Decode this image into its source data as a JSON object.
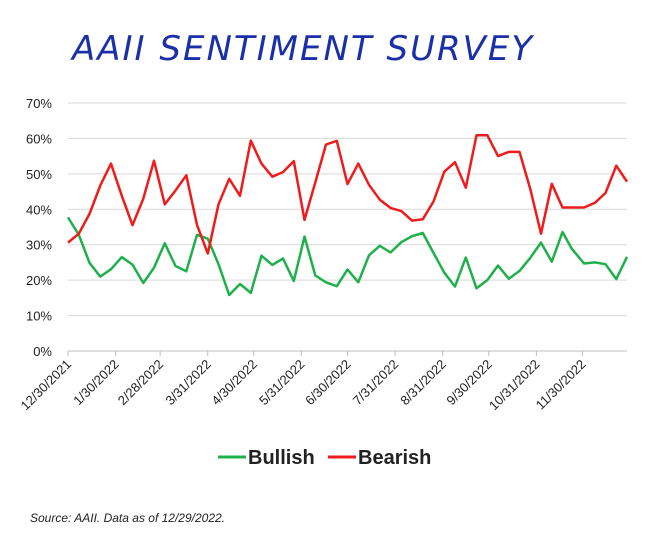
{
  "chart_data": {
    "type": "line",
    "title": "AAII SENTIMENT SURVEY",
    "source": "Source: AAII. Data as of 12/29/2022.",
    "x": [
      "12/30/2021",
      "1/6/2022",
      "1/13/2022",
      "1/20/2022",
      "1/27/2022",
      "2/3/2022",
      "2/10/2022",
      "2/17/2022",
      "2/24/2022",
      "3/3/2022",
      "3/10/2022",
      "3/17/2022",
      "3/24/2022",
      "3/31/2022",
      "4/7/2022",
      "4/14/2022",
      "4/21/2022",
      "4/28/2022",
      "5/5/2022",
      "5/12/2022",
      "5/19/2022",
      "5/26/2022",
      "6/2/2022",
      "6/9/2022",
      "6/16/2022",
      "6/23/2022",
      "6/30/2022",
      "7/7/2022",
      "7/14/2022",
      "7/21/2022",
      "7/28/2022",
      "8/4/2022",
      "8/11/2022",
      "8/18/2022",
      "8/25/2022",
      "9/1/2022",
      "9/8/2022",
      "9/15/2022",
      "9/22/2022",
      "9/29/2022",
      "10/6/2022",
      "10/13/2022",
      "10/20/2022",
      "10/27/2022",
      "11/3/2022",
      "11/10/2022",
      "11/17/2022",
      "11/23/2022",
      "12/1/2022",
      "12/8/2022",
      "12/15/2022",
      "12/22/2022",
      "12/29/2022"
    ],
    "xlim": [
      "12/30/2021",
      "12/29/2022"
    ],
    "xticks": [
      "12/30/2021",
      "1/30/2022",
      "2/28/2022",
      "3/31/2022",
      "4/30/2022",
      "5/31/2022",
      "6/30/2022",
      "7/31/2022",
      "8/31/2022",
      "9/30/2022",
      "10/31/2022",
      "11/30/2022"
    ],
    "ylim": [
      0,
      70
    ],
    "yticks": [
      {
        "value": 0,
        "label": "0%"
      },
      {
        "value": 10,
        "label": "10%"
      },
      {
        "value": 20,
        "label": "20%"
      },
      {
        "value": 30,
        "label": "30%"
      },
      {
        "value": 40,
        "label": "40%"
      },
      {
        "value": 50,
        "label": "50%"
      },
      {
        "value": 60,
        "label": "60%"
      },
      {
        "value": 70,
        "label": "70%"
      }
    ],
    "grid": true,
    "legend": "bottom",
    "series": [
      {
        "name": "Bullish",
        "color": "#1fb04c",
        "values": [
          37.7,
          32.8,
          24.9,
          21.0,
          23.1,
          26.5,
          24.4,
          19.2,
          23.5,
          30.4,
          24.0,
          22.5,
          32.8,
          31.7,
          24.5,
          15.8,
          18.9,
          16.4,
          26.9,
          24.3,
          26.1,
          19.8,
          32.3,
          21.3,
          19.4,
          18.3,
          23.0,
          19.4,
          27.0,
          29.7,
          27.8,
          30.7,
          32.4,
          33.3,
          27.7,
          22.1,
          18.2,
          26.4,
          17.7,
          20.0,
          24.1,
          20.4,
          22.6,
          26.3,
          30.6,
          25.2,
          33.6,
          28.9,
          24.7,
          25.0,
          24.5,
          20.3,
          26.6
        ]
      },
      {
        "name": "Bearish",
        "color": "#ee1c1c",
        "values": [
          30.6,
          33.1,
          38.7,
          46.7,
          52.9,
          43.8,
          35.5,
          43.0,
          53.7,
          41.4,
          45.3,
          49.6,
          35.6,
          27.5,
          41.4,
          48.6,
          43.8,
          59.4,
          52.9,
          49.2,
          50.5,
          53.6,
          37.0,
          47.6,
          58.3,
          59.3,
          47.1,
          52.9,
          46.9,
          42.7,
          40.4,
          39.5,
          36.8,
          37.2,
          42.2,
          50.6,
          53.3,
          46.1,
          60.9,
          60.9,
          55.0,
          56.2,
          56.2,
          45.7,
          33.1,
          47.2,
          40.5,
          40.5,
          40.5,
          41.8,
          44.6,
          52.3,
          47.8
        ]
      }
    ]
  }
}
